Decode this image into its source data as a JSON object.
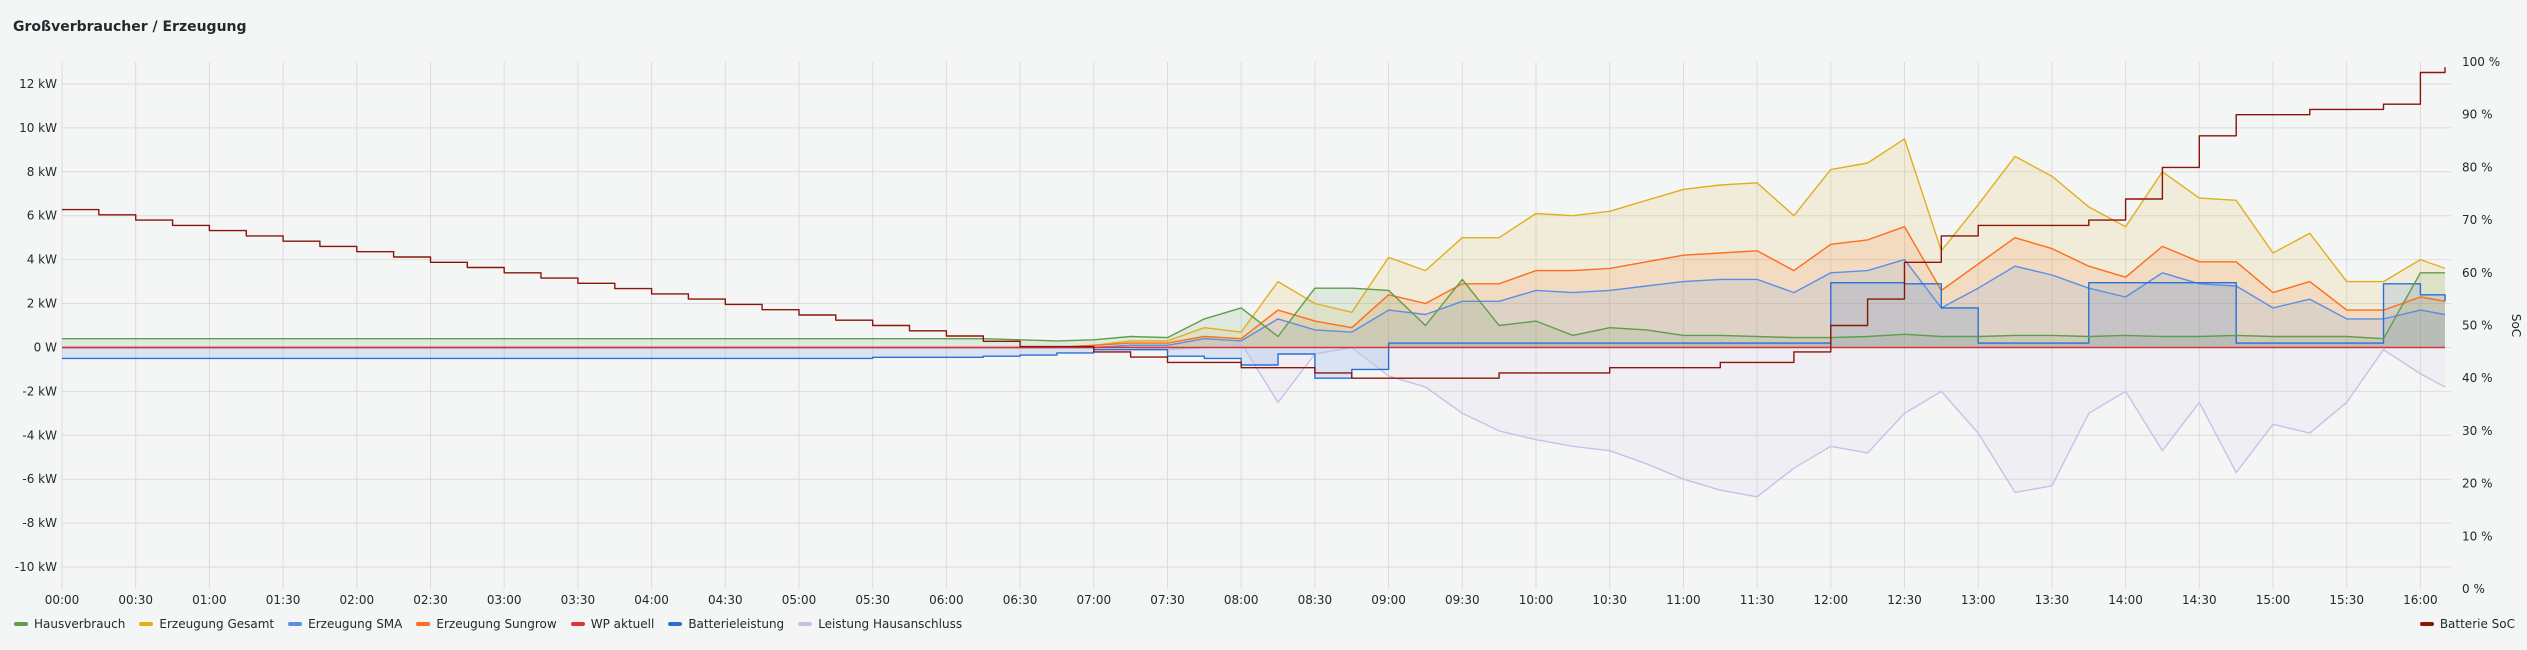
{
  "panel": {
    "title": "Großverbraucher / Erzeugung"
  },
  "chart_data": {
    "type": "line",
    "title": "Großverbraucher / Erzeugung",
    "x": [
      "00:00",
      "00:15",
      "00:30",
      "00:45",
      "01:00",
      "01:15",
      "01:30",
      "01:45",
      "02:00",
      "02:15",
      "02:30",
      "02:45",
      "03:00",
      "03:15",
      "03:30",
      "03:45",
      "04:00",
      "04:15",
      "04:30",
      "04:45",
      "05:00",
      "05:15",
      "05:30",
      "05:45",
      "06:00",
      "06:15",
      "06:30",
      "06:45",
      "07:00",
      "07:15",
      "07:30",
      "07:45",
      "08:00",
      "08:15",
      "08:30",
      "08:45",
      "09:00",
      "09:15",
      "09:30",
      "09:45",
      "10:00",
      "10:15",
      "10:30",
      "10:45",
      "11:00",
      "11:15",
      "11:30",
      "11:45",
      "12:00",
      "12:15",
      "12:30",
      "12:45",
      "13:00",
      "13:15",
      "13:30",
      "13:45",
      "14:00",
      "14:15",
      "14:30",
      "14:45",
      "15:00",
      "15:15",
      "15:30",
      "15:45",
      "16:00",
      "16:10"
    ],
    "x_ticks": [
      "00:00",
      "00:30",
      "01:00",
      "01:30",
      "02:00",
      "02:30",
      "03:00",
      "03:30",
      "04:00",
      "04:30",
      "05:00",
      "05:30",
      "06:00",
      "06:30",
      "07:00",
      "07:30",
      "08:00",
      "08:30",
      "09:00",
      "09:30",
      "10:00",
      "10:30",
      "11:00",
      "11:30",
      "12:00",
      "12:30",
      "13:00",
      "13:30",
      "14:00",
      "14:30",
      "15:00",
      "15:30",
      "16:00"
    ],
    "y_left": {
      "unit": "kW",
      "ylim": [
        -11,
        13
      ],
      "ticks": [
        "12 kW",
        "10 kW",
        "8 kW",
        "6 kW",
        "4 kW",
        "2 kW",
        "0 W",
        "-2 kW",
        "-4 kW",
        "-6 kW",
        "-8 kW",
        "-10 kW"
      ],
      "tick_values": [
        12,
        10,
        8,
        6,
        4,
        2,
        0,
        -2,
        -4,
        -6,
        -8,
        -10
      ]
    },
    "y_right": {
      "label": "SoC",
      "unit": "%",
      "ylim": [
        0,
        100
      ],
      "ticks": [
        "100 %",
        "90 %",
        "80 %",
        "70 %",
        "60 %",
        "50 %",
        "40 %",
        "30 %",
        "20 %",
        "10 %",
        "0 %"
      ],
      "tick_values": [
        100,
        90,
        80,
        70,
        60,
        50,
        40,
        30,
        20,
        10,
        0
      ]
    },
    "grid": true,
    "legend_placement": "bottom",
    "series": [
      {
        "name": "Leistung Hausanschluss",
        "axis": "left",
        "color": "#c9c0ea",
        "fill": true,
        "values": [
          0,
          0,
          0,
          0,
          0,
          0,
          0,
          0,
          0,
          0,
          0,
          0,
          0,
          0,
          0,
          0,
          0,
          0,
          0,
          0,
          0,
          0,
          0,
          0,
          0,
          0,
          0,
          0,
          0,
          0,
          -0.1,
          0,
          0.2,
          -2.5,
          -0.3,
          0,
          -1.3,
          -1.8,
          -3.0,
          -3.8,
          -4.2,
          -4.5,
          -4.7,
          -5.3,
          -6.0,
          -6.5,
          -6.8,
          -5.5,
          -4.5,
          -4.8,
          -3.0,
          -2.0,
          -3.9,
          -6.6,
          -6.3,
          -3.0,
          -2.0,
          -4.7,
          -2.5,
          -5.7,
          -3.5,
          -3.9,
          -2.5,
          -0.1,
          -1.2,
          -1.8
        ]
      },
      {
        "name": "Erzeugung Gesamt",
        "axis": "left",
        "color": "#e0b01c",
        "fill": true,
        "values": [
          0,
          0,
          0,
          0,
          0,
          0,
          0,
          0,
          0,
          0,
          0,
          0,
          0,
          0,
          0,
          0,
          0,
          0,
          0,
          0,
          0,
          0,
          0,
          0,
          0,
          0,
          0,
          0,
          0.1,
          0.3,
          0.3,
          0.9,
          0.7,
          3.0,
          2.0,
          1.6,
          4.1,
          3.5,
          5.0,
          5.0,
          6.1,
          6.0,
          6.2,
          6.7,
          7.2,
          7.4,
          7.5,
          6.0,
          8.1,
          8.4,
          9.5,
          4.4,
          6.5,
          8.7,
          7.8,
          6.4,
          5.5,
          8.0,
          6.8,
          6.7,
          4.3,
          5.2,
          3.0,
          3.0,
          4.0,
          3.6
        ]
      },
      {
        "name": "Erzeugung Sungrow",
        "axis": "left",
        "color": "#ff6d1a",
        "fill": true,
        "values": [
          0,
          0,
          0,
          0,
          0,
          0,
          0,
          0,
          0,
          0,
          0,
          0,
          0,
          0,
          0,
          0,
          0,
          0,
          0,
          0,
          0,
          0,
          0,
          0,
          0,
          0,
          0,
          0,
          0.1,
          0.2,
          0.2,
          0.5,
          0.4,
          1.7,
          1.2,
          0.9,
          2.4,
          2.0,
          2.9,
          2.9,
          3.5,
          3.5,
          3.6,
          3.9,
          4.2,
          4.3,
          4.4,
          3.5,
          4.7,
          4.9,
          5.5,
          2.6,
          3.8,
          5.0,
          4.5,
          3.7,
          3.2,
          4.6,
          3.9,
          3.9,
          2.5,
          3.0,
          1.7,
          1.7,
          2.3,
          2.1
        ]
      },
      {
        "name": "Erzeugung SMA",
        "axis": "left",
        "color": "#5a8fe6",
        "fill": true,
        "values": [
          0,
          0,
          0,
          0,
          0,
          0,
          0,
          0,
          0,
          0,
          0,
          0,
          0,
          0,
          0,
          0,
          0,
          0,
          0,
          0,
          0,
          0,
          0,
          0,
          0,
          0,
          0,
          0,
          0,
          0.1,
          0.1,
          0.4,
          0.3,
          1.3,
          0.8,
          0.7,
          1.7,
          1.5,
          2.1,
          2.1,
          2.6,
          2.5,
          2.6,
          2.8,
          3.0,
          3.1,
          3.1,
          2.5,
          3.4,
          3.5,
          4.0,
          1.8,
          2.7,
          3.7,
          3.3,
          2.7,
          2.3,
          3.4,
          2.9,
          2.8,
          1.8,
          2.2,
          1.3,
          1.3,
          1.7,
          1.5
        ]
      },
      {
        "name": "Batterieleistung",
        "axis": "left",
        "color": "#2a6fd6",
        "fill": true,
        "step": true,
        "values": [
          -0.5,
          -0.5,
          -0.5,
          -0.5,
          -0.5,
          -0.5,
          -0.5,
          -0.5,
          -0.5,
          -0.5,
          -0.5,
          -0.5,
          -0.5,
          -0.5,
          -0.5,
          -0.5,
          -0.5,
          -0.5,
          -0.5,
          -0.5,
          -0.5,
          -0.5,
          -0.45,
          -0.45,
          -0.45,
          -0.4,
          -0.35,
          -0.25,
          -0.1,
          -0.1,
          -0.4,
          -0.5,
          -0.8,
          -0.3,
          -1.4,
          -1.0,
          0.2,
          0.2,
          0.2,
          0.2,
          0.2,
          0.2,
          0.2,
          0.2,
          0.2,
          0.2,
          0.2,
          0.2,
          2.95,
          2.95,
          2.9,
          1.8,
          0.2,
          0.2,
          0.2,
          2.95,
          2.95,
          2.95,
          2.95,
          0.2,
          0.2,
          0.2,
          0.2,
          2.9,
          2.4,
          2.1
        ]
      },
      {
        "name": "Hausverbrauch",
        "axis": "left",
        "color": "#5e9e4a",
        "fill": true,
        "values": [
          0.4,
          0.4,
          0.4,
          0.4,
          0.4,
          0.4,
          0.4,
          0.4,
          0.4,
          0.4,
          0.4,
          0.4,
          0.4,
          0.4,
          0.4,
          0.4,
          0.4,
          0.4,
          0.4,
          0.4,
          0.4,
          0.4,
          0.4,
          0.4,
          0.4,
          0.4,
          0.35,
          0.3,
          0.35,
          0.5,
          0.45,
          1.3,
          1.8,
          0.5,
          2.7,
          2.7,
          2.6,
          1.0,
          3.1,
          1.0,
          1.2,
          0.55,
          0.9,
          0.8,
          0.55,
          0.55,
          0.5,
          0.45,
          0.45,
          0.5,
          0.6,
          0.5,
          0.5,
          0.55,
          0.55,
          0.5,
          0.55,
          0.5,
          0.5,
          0.55,
          0.5,
          0.5,
          0.5,
          0.4,
          3.4,
          3.4
        ]
      },
      {
        "name": "WP aktuell",
        "axis": "left",
        "color": "#d9323f",
        "fill": false,
        "values": [
          0,
          0,
          0,
          0,
          0,
          0,
          0,
          0,
          0,
          0,
          0,
          0,
          0,
          0,
          0,
          0,
          0,
          0,
          0,
          0,
          0,
          0,
          0,
          0,
          0,
          0,
          0,
          0,
          0,
          0,
          0,
          0,
          0,
          0,
          0,
          0,
          0,
          0,
          0,
          0,
          0,
          0,
          0,
          0,
          0,
          0,
          0,
          0,
          0,
          0,
          0,
          0,
          0,
          0,
          0,
          0,
          0,
          0,
          0,
          0,
          0,
          0,
          0,
          0,
          0,
          0
        ]
      },
      {
        "name": "Batterie SoC",
        "axis": "right",
        "color": "#8c1409",
        "fill": false,
        "step": true,
        "values": [
          72,
          71,
          70,
          69,
          68,
          67,
          66,
          65,
          64,
          63,
          62,
          61,
          60,
          59,
          58,
          57,
          56,
          55,
          54,
          53,
          52,
          51,
          50,
          49,
          48,
          47,
          46,
          46,
          45,
          44,
          43,
          43,
          42,
          42,
          41,
          40,
          40,
          40,
          40,
          41,
          41,
          41,
          42,
          42,
          42,
          43,
          43,
          45,
          50,
          55,
          62,
          67,
          69,
          69,
          69,
          70,
          74,
          80,
          86,
          90,
          90,
          91,
          91,
          92,
          98,
          99
        ]
      }
    ]
  },
  "legend": {
    "left": [
      {
        "name": "Hausverbrauch",
        "color": "#5e9e4a"
      },
      {
        "name": "Erzeugung Gesamt",
        "color": "#e0b01c"
      },
      {
        "name": "Erzeugung SMA",
        "color": "#5a8fe6"
      },
      {
        "name": "Erzeugung Sungrow",
        "color": "#ff6d1a"
      },
      {
        "name": "WP aktuell",
        "color": "#d9323f"
      },
      {
        "name": "Batterieleistung",
        "color": "#2a6fd6"
      },
      {
        "name": "Leistung Hausanschluss",
        "color": "#c9c0ea"
      }
    ],
    "right": [
      {
        "name": "Batterie SoC",
        "color": "#8c1409"
      }
    ]
  }
}
